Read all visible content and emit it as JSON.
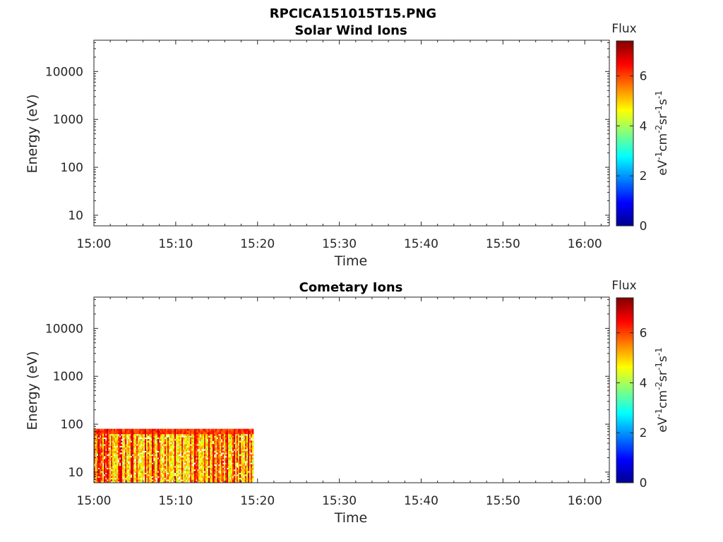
{
  "figure": {
    "title": "RPCICA151015T15.PNG"
  },
  "colors": {
    "axis": "#262626",
    "colormap": "jet",
    "colormap_stops": [
      "#00008f",
      "#0000ff",
      "#0080ff",
      "#00ffff",
      "#80ff80",
      "#ffff00",
      "#ff8000",
      "#ff0000",
      "#800000"
    ]
  },
  "chart_data": [
    {
      "type": "heatmap",
      "title": "Solar Wind Ions",
      "xlabel": "Time",
      "ylabel": "Energy (eV)",
      "xticks": [
        "15:00",
        "15:10",
        "15:20",
        "15:30",
        "15:40",
        "15:50",
        "16:00"
      ],
      "xlim": [
        "15:00",
        "16:03"
      ],
      "yscale": "log",
      "yticks": [
        10,
        100,
        1000,
        10000
      ],
      "ytick_labels": [
        "10",
        "100",
        "1000",
        "10000"
      ],
      "ylim": [
        6,
        45000
      ],
      "colorbar": {
        "label_top": "Flux",
        "ticks": [
          0,
          2,
          4,
          6
        ],
        "tick_labels": [
          "0",
          "2",
          "4",
          "6"
        ],
        "range": [
          0,
          7.4
        ]
      },
      "data": {
        "present": false
      }
    },
    {
      "type": "heatmap",
      "title": "Cometary Ions",
      "xlabel": "Time",
      "ylabel": "Energy (eV)",
      "xticks": [
        "15:00",
        "15:10",
        "15:20",
        "15:30",
        "15:40",
        "15:50",
        "16:00"
      ],
      "xlim": [
        "15:00",
        "16:03"
      ],
      "yscale": "log",
      "yticks": [
        10,
        100,
        1000,
        10000
      ],
      "ytick_labels": [
        "10",
        "100",
        "1000",
        "10000"
      ],
      "ylim": [
        6,
        45000
      ],
      "colorbar": {
        "label_top": "Flux",
        "ticks": [
          0,
          2,
          4,
          6
        ],
        "tick_labels": [
          "0",
          "2",
          "4",
          "6"
        ],
        "range": [
          0,
          7.4
        ]
      },
      "data": {
        "present": true,
        "time_start": "15:00",
        "time_end": "15:19:30",
        "energy_min_eV": 6,
        "energy_max_eV": 80,
        "flux_min": 3.5,
        "flux_max": 7
      }
    }
  ]
}
